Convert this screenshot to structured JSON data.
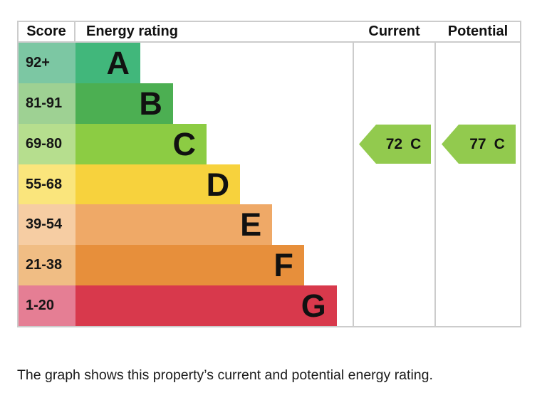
{
  "table": {
    "headers": {
      "score": "Score",
      "energy_rating": "Energy rating",
      "current": "Current",
      "potential": "Potential"
    }
  },
  "bands": [
    {
      "letter": "A",
      "score": "92+",
      "color": "#41b77b",
      "tint": "#7cc7a3",
      "width_pct": 23.4
    },
    {
      "letter": "B",
      "score": "81-91",
      "color": "#4caf52",
      "tint": "#9ed193",
      "width_pct": 35.2
    },
    {
      "letter": "C",
      "score": "69-80",
      "color": "#8ccc43",
      "tint": "#b6de8e",
      "width_pct": 47.3
    },
    {
      "letter": "D",
      "score": "55-68",
      "color": "#f7d23d",
      "tint": "#fae57c",
      "width_pct": 59.4
    },
    {
      "letter": "E",
      "score": "39-54",
      "color": "#efa967",
      "tint": "#f6cda3",
      "width_pct": 71.0
    },
    {
      "letter": "F",
      "score": "21-38",
      "color": "#e78f3b",
      "tint": "#f0bd84",
      "width_pct": 82.5
    },
    {
      "letter": "G",
      "score": "1-20",
      "color": "#d8394c",
      "tint": "#e57e94",
      "width_pct": 94.3
    }
  ],
  "current": {
    "score": "72",
    "letter": "C",
    "color": "#92ca4e"
  },
  "potential": {
    "score": "77",
    "letter": "C",
    "color": "#92ca4e"
  },
  "caption": "The graph shows this property’s current and potential energy rating.",
  "colors": {
    "border": "#cccccc",
    "text": "#111111"
  },
  "chart_data": {
    "type": "bar",
    "title": "Energy rating",
    "orientation": "horizontal",
    "categories": [
      "A",
      "B",
      "C",
      "D",
      "E",
      "F",
      "G"
    ],
    "score_ranges": [
      "92+",
      "81-91",
      "69-80",
      "55-68",
      "39-54",
      "21-38",
      "1-20"
    ],
    "bar_lengths_pct_of_column": [
      23.4,
      35.2,
      47.3,
      59.4,
      71.0,
      82.5,
      94.3
    ],
    "band_colors": [
      "#41b77b",
      "#4caf52",
      "#8ccc43",
      "#f7d23d",
      "#efa967",
      "#e78f3b",
      "#d8394c"
    ],
    "current": {
      "value": 72,
      "band": "C"
    },
    "potential": {
      "value": 77,
      "band": "C"
    },
    "legend_position": "none",
    "grid": false,
    "caption": "The graph shows this property’s current and potential energy rating."
  }
}
